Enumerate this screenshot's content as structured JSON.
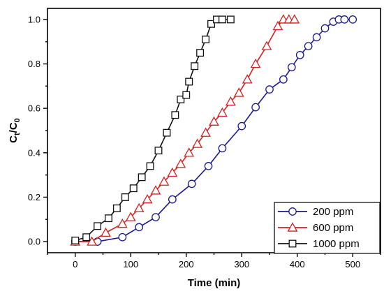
{
  "chart_data": {
    "type": "line",
    "xlabel": "Time (min)",
    "ylabel": {
      "main": "C",
      "sub1": "t",
      "mid": "/C",
      "sub2": "0"
    },
    "xlim": [
      -50,
      550
    ],
    "ylim": [
      -0.05,
      1.05
    ],
    "xticks": [
      0,
      100,
      200,
      300,
      400,
      500
    ],
    "yticks": [
      0.0,
      0.2,
      0.4,
      0.6,
      0.8,
      1.0
    ],
    "ytick_labels": [
      "0.0",
      "0.2",
      "0.4",
      "0.6",
      "0.8",
      "1.0"
    ],
    "grid": false,
    "legend_position": "bottom-right",
    "series": [
      {
        "name": "200 ppm",
        "color": "#1a1a8c",
        "marker": "circle",
        "x": [
          0,
          40,
          85,
          115,
          145,
          175,
          210,
          240,
          265,
          300,
          325,
          350,
          375,
          390,
          405,
          420,
          435,
          450,
          465,
          475,
          485,
          500
        ],
        "y": [
          0.0,
          0.0,
          0.02,
          0.065,
          0.11,
          0.19,
          0.26,
          0.34,
          0.42,
          0.52,
          0.605,
          0.685,
          0.73,
          0.785,
          0.84,
          0.88,
          0.92,
          0.96,
          0.99,
          1.0,
          1.0,
          1.0
        ]
      },
      {
        "name": "600 ppm",
        "color": "#d42020",
        "marker": "triangle",
        "x": [
          0,
          30,
          55,
          85,
          100,
          115,
          130,
          145,
          160,
          175,
          190,
          205,
          220,
          235,
          250,
          265,
          280,
          295,
          310,
          325,
          345,
          365,
          375,
          385,
          395
        ],
        "y": [
          0.0,
          0.0,
          0.04,
          0.08,
          0.11,
          0.15,
          0.19,
          0.23,
          0.27,
          0.31,
          0.35,
          0.4,
          0.44,
          0.49,
          0.54,
          0.58,
          0.63,
          0.67,
          0.73,
          0.8,
          0.88,
          0.97,
          1.0,
          1.0,
          1.0
        ]
      },
      {
        "name": "1000 ppm",
        "color": "#111111",
        "marker": "square",
        "x": [
          0,
          20,
          40,
          60,
          75,
          90,
          105,
          120,
          135,
          150,
          165,
          180,
          190,
          200,
          205,
          215,
          225,
          235,
          245,
          255,
          265,
          280
        ],
        "y": [
          0.005,
          0.02,
          0.07,
          0.105,
          0.15,
          0.2,
          0.24,
          0.29,
          0.34,
          0.41,
          0.49,
          0.57,
          0.64,
          0.66,
          0.72,
          0.79,
          0.85,
          0.91,
          0.98,
          1.0,
          1.0,
          1.0
        ]
      }
    ]
  }
}
